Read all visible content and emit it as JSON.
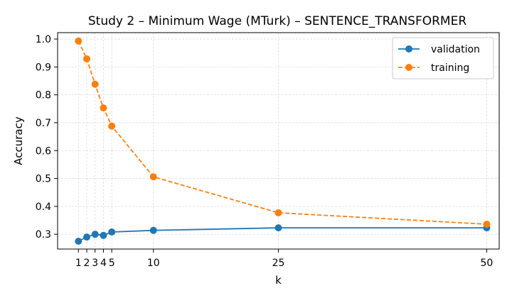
{
  "chart_data": {
    "type": "line",
    "title": "Study 2 – Minimum Wage (MTurk) – SENTENCE_TRANSFORMER",
    "xlabel": "k",
    "ylabel": "Accuracy",
    "xticks": [
      1,
      2,
      3,
      4,
      5,
      10,
      25,
      50
    ],
    "yticks": [
      "0.3",
      "0.4",
      "0.5",
      "0.6",
      "0.7",
      "0.8",
      "0.9",
      "1.0"
    ],
    "xlim": [
      -1.5,
      51.5
    ],
    "ylim": [
      0.247,
      1.023
    ],
    "grid": true,
    "legend_position": "upper right",
    "x": [
      1,
      2,
      3,
      4,
      5,
      10,
      25,
      50
    ],
    "series": [
      {
        "name": "validation",
        "color": "#1f77b4",
        "linestyle": "solid",
        "marker": "circle",
        "values": [
          0.275,
          0.29,
          0.3,
          0.296,
          0.308,
          0.314,
          0.323,
          0.323
        ]
      },
      {
        "name": "training",
        "color": "#ff7f0e",
        "linestyle": "dashed",
        "marker": "circle",
        "values": [
          0.993,
          0.929,
          0.838,
          0.753,
          0.688,
          0.506,
          0.377,
          0.336
        ]
      }
    ]
  }
}
